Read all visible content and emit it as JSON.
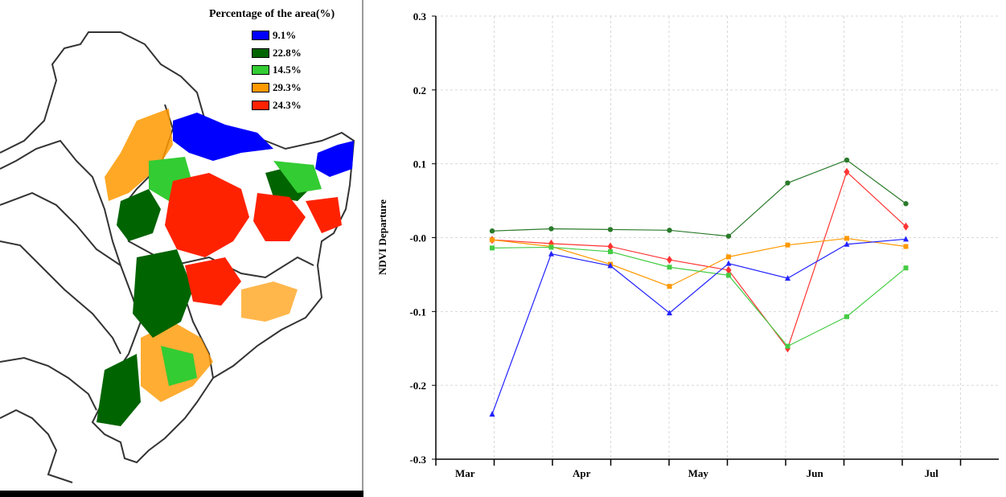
{
  "legend": {
    "title": "Percentage of the area(%)",
    "items": [
      {
        "label": "9.1%",
        "color": "#0000ff"
      },
      {
        "label": "22.8%",
        "color": "#006400"
      },
      {
        "label": "14.5%",
        "color": "#33cc33"
      },
      {
        "label": "29.3%",
        "color": "#ff9900"
      },
      {
        "label": "24.3%",
        "color": "#ff2200"
      }
    ]
  },
  "chart_data": {
    "type": "line",
    "title": "",
    "xlabel": "",
    "ylabel": "NDVI Departure",
    "ylim": [
      -0.3,
      0.3
    ],
    "yticks": [
      "0.3",
      "0.2",
      "0.1",
      "-0.0",
      "-0.1",
      "-0.2",
      "-0.3"
    ],
    "month_labels": [
      "Mar",
      "Apr",
      "May",
      "Jun",
      "Jul"
    ],
    "x_points": [
      "Mar 2",
      "Apr 1",
      "Apr 2",
      "May 1",
      "May 2",
      "Jun 1",
      "Jun 2",
      "Jul 1"
    ],
    "grid": true,
    "legend_position": "none",
    "series": [
      {
        "color": "#2a7a2a",
        "marker": "circle",
        "values": [
          0.009,
          0.012,
          0.011,
          0.01,
          0.002,
          0.074,
          0.105,
          0.046
        ]
      },
      {
        "color": "#ff3333",
        "marker": "diamond",
        "values": [
          -0.003,
          -0.008,
          -0.012,
          -0.03,
          -0.044,
          -0.15,
          0.089,
          0.015
        ]
      },
      {
        "color": "#ff9900",
        "marker": "square",
        "values": [
          -0.003,
          -0.012,
          -0.036,
          -0.066,
          -0.026,
          -0.01,
          -0.001,
          -0.012
        ]
      },
      {
        "color": "#44cc44",
        "marker": "square",
        "values": [
          -0.014,
          -0.013,
          -0.019,
          -0.04,
          -0.051,
          -0.147,
          -0.107,
          -0.041
        ]
      },
      {
        "color": "#2222ff",
        "marker": "triangle",
        "values": [
          -0.239,
          -0.022,
          -0.038,
          -0.102,
          -0.035,
          -0.055,
          -0.009,
          -0.002
        ]
      }
    ]
  }
}
